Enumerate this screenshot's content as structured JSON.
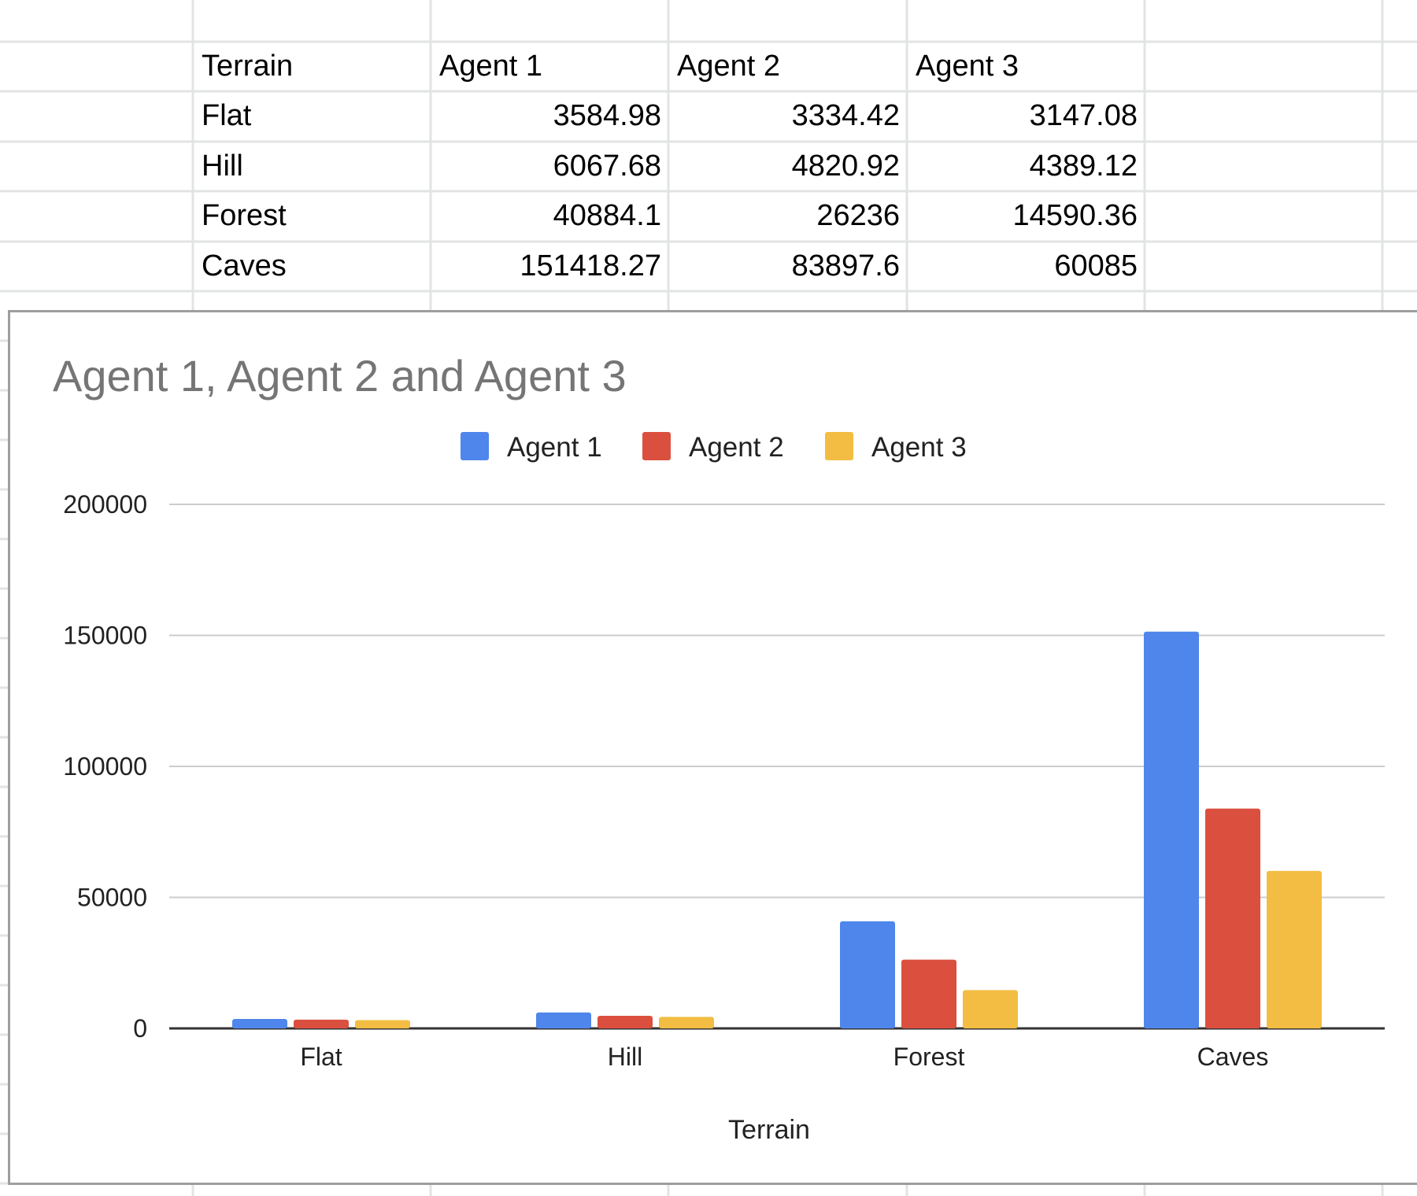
{
  "sheet": {
    "headers": [
      "Terrain",
      "Agent 1",
      "Agent 2",
      "Agent 3"
    ],
    "rows": [
      [
        "Flat",
        "3584.98",
        "3334.42",
        "3147.08"
      ],
      [
        "Hill",
        "6067.68",
        "4820.92",
        "4389.12"
      ],
      [
        "Forest",
        "40884.1",
        "26236",
        "14590.36"
      ],
      [
        "Caves",
        "151418.27",
        "83897.6",
        "60085"
      ]
    ]
  },
  "chart_data": {
    "type": "bar",
    "title": "Agent 1, Agent 2 and Agent 3",
    "xlabel": "Terrain",
    "ylabel": "",
    "categories": [
      "Flat",
      "Hill",
      "Forest",
      "Caves"
    ],
    "series": [
      {
        "name": "Agent 1",
        "color": "#4f86ec",
        "values": [
          3584.98,
          6067.68,
          40884.1,
          151418.27
        ]
      },
      {
        "name": "Agent 2",
        "color": "#db4f3f",
        "values": [
          3334.42,
          4820.92,
          26236,
          83897.6
        ]
      },
      {
        "name": "Agent 3",
        "color": "#f2bd42",
        "values": [
          3147.08,
          4389.12,
          14590.36,
          60085
        ]
      }
    ],
    "ylim": [
      0,
      200000
    ],
    "yticks": [
      "0",
      "50000",
      "100000",
      "150000",
      "200000"
    ],
    "grid": true,
    "legend_position": "top"
  }
}
